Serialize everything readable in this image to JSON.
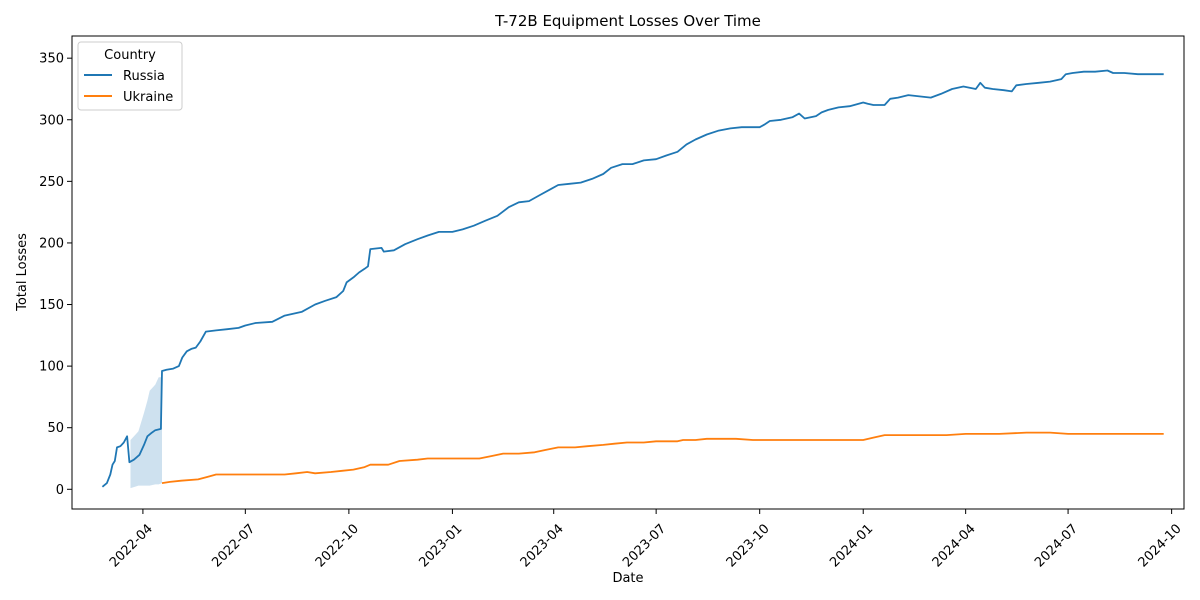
{
  "chart_data": {
    "type": "line",
    "title": "T-72B Equipment Losses Over Time",
    "xlabel": "Date",
    "ylabel": "Total Losses",
    "xlim": [
      "2022-01-28",
      "2024-10-12"
    ],
    "ylim": [
      -16,
      368
    ],
    "x_ticks": [
      {
        "date": "2022-04-01",
        "label": "2022-04"
      },
      {
        "date": "2022-07-01",
        "label": "2022-07"
      },
      {
        "date": "2022-10-01",
        "label": "2022-10"
      },
      {
        "date": "2023-01-01",
        "label": "2023-01"
      },
      {
        "date": "2023-04-01",
        "label": "2023-04"
      },
      {
        "date": "2023-07-01",
        "label": "2023-07"
      },
      {
        "date": "2023-10-01",
        "label": "2023-10"
      },
      {
        "date": "2024-01-01",
        "label": "2024-01"
      },
      {
        "date": "2024-04-01",
        "label": "2024-04"
      },
      {
        "date": "2024-07-01",
        "label": "2024-07"
      },
      {
        "date": "2024-10-01",
        "label": "2024-10"
      }
    ],
    "y_ticks": [
      0,
      50,
      100,
      150,
      200,
      250,
      300,
      350
    ],
    "grid": false,
    "legend": {
      "title": "Country",
      "position": "top-left"
    },
    "series": [
      {
        "name": "Russia",
        "color": "#1f77b4",
        "points": [
          [
            "2022-02-24",
            2
          ],
          [
            "2022-02-28",
            5
          ],
          [
            "2022-03-03",
            12
          ],
          [
            "2022-03-05",
            20
          ],
          [
            "2022-03-07",
            23
          ],
          [
            "2022-03-09",
            34
          ],
          [
            "2022-03-12",
            35
          ],
          [
            "2022-03-15",
            38
          ],
          [
            "2022-03-18",
            43
          ],
          [
            "2022-03-20",
            22
          ],
          [
            "2022-03-24",
            24
          ],
          [
            "2022-03-29",
            28
          ],
          [
            "2022-04-02",
            36
          ],
          [
            "2022-04-05",
            43
          ],
          [
            "2022-04-09",
            46
          ],
          [
            "2022-04-12",
            48
          ],
          [
            "2022-04-17",
            49
          ],
          [
            "2022-04-18",
            96
          ],
          [
            "2022-04-22",
            97
          ],
          [
            "2022-04-28",
            98
          ],
          [
            "2022-05-03",
            100
          ],
          [
            "2022-05-06",
            107
          ],
          [
            "2022-05-10",
            112
          ],
          [
            "2022-05-14",
            114
          ],
          [
            "2022-05-18",
            115
          ],
          [
            "2022-05-22",
            120
          ],
          [
            "2022-05-27",
            128
          ],
          [
            "2022-06-05",
            129
          ],
          [
            "2022-06-15",
            130
          ],
          [
            "2022-06-25",
            131
          ],
          [
            "2022-07-01",
            133
          ],
          [
            "2022-07-10",
            135
          ],
          [
            "2022-07-25",
            136
          ],
          [
            "2022-08-05",
            141
          ],
          [
            "2022-08-20",
            144
          ],
          [
            "2022-09-01",
            150
          ],
          [
            "2022-09-10",
            153
          ],
          [
            "2022-09-20",
            156
          ],
          [
            "2022-09-26",
            161
          ],
          [
            "2022-09-29",
            168
          ],
          [
            "2022-10-05",
            172
          ],
          [
            "2022-10-10",
            176
          ],
          [
            "2022-10-15",
            179
          ],
          [
            "2022-10-18",
            181
          ],
          [
            "2022-10-20",
            195
          ],
          [
            "2022-10-30",
            196
          ],
          [
            "2022-11-01",
            193
          ],
          [
            "2022-11-10",
            194
          ],
          [
            "2022-11-20",
            199
          ],
          [
            "2022-12-01",
            203
          ],
          [
            "2022-12-10",
            206
          ],
          [
            "2022-12-20",
            209
          ],
          [
            "2023-01-01",
            209
          ],
          [
            "2023-01-10",
            211
          ],
          [
            "2023-01-20",
            214
          ],
          [
            "2023-01-30",
            218
          ],
          [
            "2023-02-10",
            222
          ],
          [
            "2023-02-20",
            229
          ],
          [
            "2023-03-01",
            233
          ],
          [
            "2023-03-10",
            234
          ],
          [
            "2023-03-20",
            239
          ],
          [
            "2023-03-30",
            244
          ],
          [
            "2023-04-05",
            247
          ],
          [
            "2023-04-15",
            248
          ],
          [
            "2023-04-25",
            249
          ],
          [
            "2023-05-05",
            252
          ],
          [
            "2023-05-15",
            256
          ],
          [
            "2023-05-22",
            261
          ],
          [
            "2023-06-01",
            264
          ],
          [
            "2023-06-10",
            264
          ],
          [
            "2023-06-20",
            267
          ],
          [
            "2023-07-01",
            268
          ],
          [
            "2023-07-10",
            271
          ],
          [
            "2023-07-20",
            274
          ],
          [
            "2023-07-28",
            280
          ],
          [
            "2023-08-05",
            284
          ],
          [
            "2023-08-15",
            288
          ],
          [
            "2023-08-25",
            291
          ],
          [
            "2023-09-05",
            293
          ],
          [
            "2023-09-15",
            294
          ],
          [
            "2023-09-25",
            294
          ],
          [
            "2023-10-01",
            294
          ],
          [
            "2023-10-05",
            296
          ],
          [
            "2023-10-10",
            299
          ],
          [
            "2023-10-20",
            300
          ],
          [
            "2023-10-30",
            302
          ],
          [
            "2023-11-05",
            305
          ],
          [
            "2023-11-10",
            301
          ],
          [
            "2023-11-20",
            303
          ],
          [
            "2023-11-25",
            306
          ],
          [
            "2023-12-01",
            308
          ],
          [
            "2023-12-10",
            310
          ],
          [
            "2023-12-20",
            311
          ],
          [
            "2024-01-01",
            314
          ],
          [
            "2024-01-05",
            313
          ],
          [
            "2024-01-10",
            312
          ],
          [
            "2024-01-20",
            312
          ],
          [
            "2024-01-25",
            317
          ],
          [
            "2024-02-01",
            318
          ],
          [
            "2024-02-10",
            320
          ],
          [
            "2024-02-20",
            319
          ],
          [
            "2024-03-01",
            318
          ],
          [
            "2024-03-10",
            321
          ],
          [
            "2024-03-20",
            325
          ],
          [
            "2024-03-30",
            327
          ],
          [
            "2024-04-10",
            325
          ],
          [
            "2024-04-14",
            330
          ],
          [
            "2024-04-18",
            326
          ],
          [
            "2024-04-25",
            325
          ],
          [
            "2024-05-05",
            324
          ],
          [
            "2024-05-12",
            323
          ],
          [
            "2024-05-16",
            328
          ],
          [
            "2024-05-25",
            329
          ],
          [
            "2024-06-05",
            330
          ],
          [
            "2024-06-15",
            331
          ],
          [
            "2024-06-25",
            333
          ],
          [
            "2024-06-29",
            337
          ],
          [
            "2024-07-05",
            338
          ],
          [
            "2024-07-15",
            339
          ],
          [
            "2024-07-25",
            339
          ],
          [
            "2024-08-05",
            340
          ],
          [
            "2024-08-10",
            338
          ],
          [
            "2024-08-20",
            338
          ],
          [
            "2024-09-01",
            337
          ],
          [
            "2024-09-10",
            337
          ],
          [
            "2024-09-24",
            337
          ]
        ],
        "ci_band": [
          [
            "2022-03-21",
            1,
            40
          ],
          [
            "2022-03-25",
            2,
            44
          ],
          [
            "2022-03-28",
            3,
            47
          ],
          [
            "2022-04-02",
            3,
            62
          ],
          [
            "2022-04-05",
            3,
            72
          ],
          [
            "2022-04-07",
            3,
            80
          ],
          [
            "2022-04-12",
            4,
            85
          ],
          [
            "2022-04-15",
            4,
            91
          ],
          [
            "2022-04-18",
            5,
            91
          ]
        ]
      },
      {
        "name": "Ukraine",
        "color": "#ff7f0e",
        "points": [
          [
            "2022-04-18",
            5
          ],
          [
            "2022-04-25",
            6
          ],
          [
            "2022-05-05",
            7
          ],
          [
            "2022-05-20",
            8
          ],
          [
            "2022-05-28",
            10
          ],
          [
            "2022-06-05",
            12
          ],
          [
            "2022-06-20",
            12
          ],
          [
            "2022-07-15",
            12
          ],
          [
            "2022-08-05",
            12
          ],
          [
            "2022-08-15",
            13
          ],
          [
            "2022-08-25",
            14
          ],
          [
            "2022-09-01",
            13
          ],
          [
            "2022-09-15",
            14
          ],
          [
            "2022-09-25",
            15
          ],
          [
            "2022-10-05",
            16
          ],
          [
            "2022-10-15",
            18
          ],
          [
            "2022-10-20",
            20
          ],
          [
            "2022-11-05",
            20
          ],
          [
            "2022-11-15",
            23
          ],
          [
            "2022-12-01",
            24
          ],
          [
            "2022-12-10",
            25
          ],
          [
            "2023-01-01",
            25
          ],
          [
            "2023-01-25",
            25
          ],
          [
            "2023-02-05",
            27
          ],
          [
            "2023-02-15",
            29
          ],
          [
            "2023-03-01",
            29
          ],
          [
            "2023-03-15",
            30
          ],
          [
            "2023-03-25",
            32
          ],
          [
            "2023-04-05",
            34
          ],
          [
            "2023-04-20",
            34
          ],
          [
            "2023-05-01",
            35
          ],
          [
            "2023-05-15",
            36
          ],
          [
            "2023-05-25",
            37
          ],
          [
            "2023-06-05",
            38
          ],
          [
            "2023-06-20",
            38
          ],
          [
            "2023-07-01",
            39
          ],
          [
            "2023-07-20",
            39
          ],
          [
            "2023-07-25",
            40
          ],
          [
            "2023-08-05",
            40
          ],
          [
            "2023-08-15",
            41
          ],
          [
            "2023-09-10",
            41
          ],
          [
            "2023-09-25",
            40
          ],
          [
            "2023-10-10",
            40
          ],
          [
            "2023-11-01",
            40
          ],
          [
            "2023-12-01",
            40
          ],
          [
            "2024-01-01",
            40
          ],
          [
            "2024-01-10",
            42
          ],
          [
            "2024-01-20",
            44
          ],
          [
            "2024-02-15",
            44
          ],
          [
            "2024-03-15",
            44
          ],
          [
            "2024-04-01",
            45
          ],
          [
            "2024-05-01",
            45
          ],
          [
            "2024-05-25",
            46
          ],
          [
            "2024-06-15",
            46
          ],
          [
            "2024-07-01",
            45
          ],
          [
            "2024-08-01",
            45
          ],
          [
            "2024-09-24",
            45
          ]
        ]
      }
    ]
  }
}
